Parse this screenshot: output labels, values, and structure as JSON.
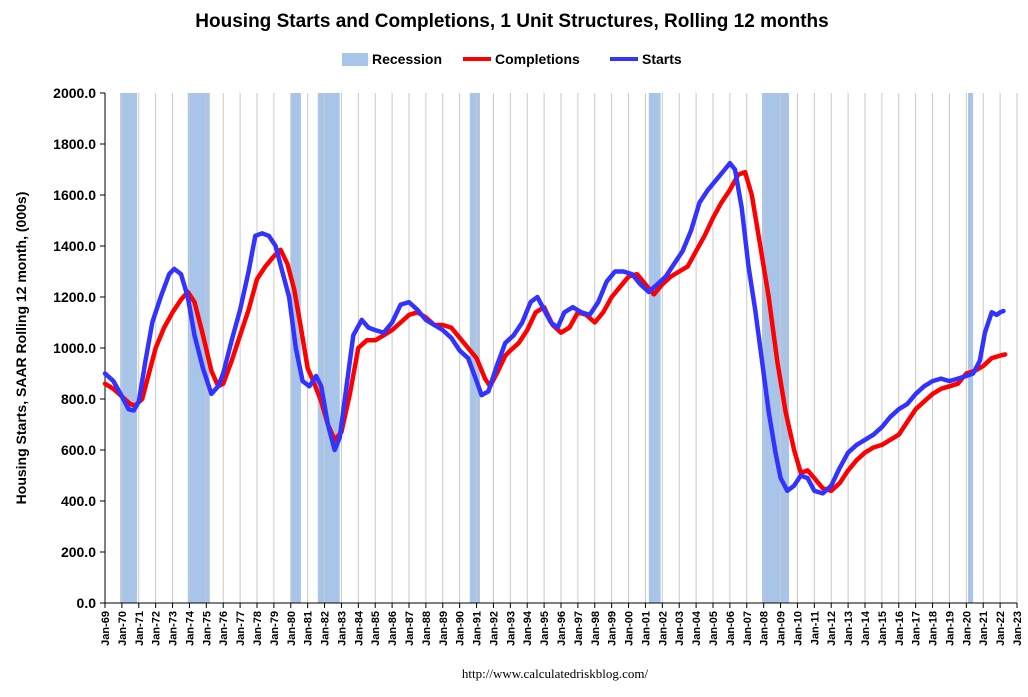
{
  "chart_data": {
    "type": "line",
    "title": "Housing Starts and Completions, 1 Unit Structures, Rolling 12 months",
    "ylabel": "Housing Starts, SAAR Rolling 12 month, (000s)",
    "xlabel": "",
    "ylim": [
      0,
      2000
    ],
    "xlim": [
      1969.0,
      2023.0
    ],
    "y_ticks": [
      "0.0",
      "200.0",
      "400.0",
      "600.0",
      "800.0",
      "1000.0",
      "1200.0",
      "1400.0",
      "1600.0",
      "1800.0",
      "2000.0"
    ],
    "x_ticks": [
      "Jan-69",
      "Jan-70",
      "Jan-71",
      "Jan-72",
      "Jan-73",
      "Jan-74",
      "Jan-75",
      "Jan-76",
      "Jan-77",
      "Jan-78",
      "Jan-79",
      "Jan-80",
      "Jan-81",
      "Jan-82",
      "Jan-83",
      "Jan-84",
      "Jan-85",
      "Jan-86",
      "Jan-87",
      "Jan-88",
      "Jan-89",
      "Jan-90",
      "Jan-91",
      "Jan-92",
      "Jan-93",
      "Jan-94",
      "Jan-95",
      "Jan-96",
      "Jan-97",
      "Jan-98",
      "Jan-99",
      "Jan-00",
      "Jan-01",
      "Jan-02",
      "Jan-03",
      "Jan-04",
      "Jan-05",
      "Jan-06",
      "Jan-07",
      "Jan-08",
      "Jan-09",
      "Jan-10",
      "Jan-11",
      "Jan-12",
      "Jan-13",
      "Jan-14",
      "Jan-15",
      "Jan-16",
      "Jan-17",
      "Jan-18",
      "Jan-19",
      "Jan-20",
      "Jan-21",
      "Jan-22",
      "Jan-23"
    ],
    "legend": {
      "position": "top-center",
      "entries": [
        "Recession",
        "Completions",
        "Starts"
      ]
    },
    "grid": {
      "vertical": true,
      "horizontal": false
    },
    "recessions": [
      [
        1969.9,
        1970.9
      ],
      [
        1973.9,
        1975.2
      ],
      [
        1980.0,
        1980.6
      ],
      [
        1981.6,
        1982.9
      ],
      [
        1990.6,
        1991.2
      ],
      [
        2001.2,
        2001.9
      ],
      [
        2007.9,
        2009.5
      ],
      [
        2020.1,
        2020.4
      ]
    ],
    "series": [
      {
        "name": "Completions",
        "color": "#ff0000",
        "points": [
          [
            1969.0,
            860
          ],
          [
            1969.5,
            840
          ],
          [
            1970.0,
            810
          ],
          [
            1970.5,
            780
          ],
          [
            1970.8,
            775
          ],
          [
            1971.2,
            800
          ],
          [
            1971.6,
            900
          ],
          [
            1972.0,
            1000
          ],
          [
            1972.5,
            1080
          ],
          [
            1973.0,
            1140
          ],
          [
            1973.5,
            1190
          ],
          [
            1973.9,
            1220
          ],
          [
            1974.3,
            1180
          ],
          [
            1974.8,
            1050
          ],
          [
            1975.3,
            910
          ],
          [
            1975.7,
            850
          ],
          [
            1976.0,
            860
          ],
          [
            1976.5,
            950
          ],
          [
            1977.0,
            1050
          ],
          [
            1977.5,
            1150
          ],
          [
            1978.0,
            1270
          ],
          [
            1978.5,
            1320
          ],
          [
            1979.0,
            1360
          ],
          [
            1979.4,
            1385
          ],
          [
            1979.8,
            1330
          ],
          [
            1980.2,
            1230
          ],
          [
            1980.6,
            1080
          ],
          [
            1981.0,
            920
          ],
          [
            1981.4,
            860
          ],
          [
            1981.8,
            790
          ],
          [
            1982.2,
            700
          ],
          [
            1982.6,
            640
          ],
          [
            1983.0,
            670
          ],
          [
            1983.5,
            820
          ],
          [
            1984.0,
            1000
          ],
          [
            1984.5,
            1030
          ],
          [
            1985.0,
            1030
          ],
          [
            1985.5,
            1050
          ],
          [
            1986.0,
            1070
          ],
          [
            1986.5,
            1100
          ],
          [
            1987.0,
            1130
          ],
          [
            1987.5,
            1140
          ],
          [
            1988.0,
            1120
          ],
          [
            1988.5,
            1090
          ],
          [
            1989.0,
            1090
          ],
          [
            1989.5,
            1080
          ],
          [
            1990.0,
            1040
          ],
          [
            1990.5,
            1000
          ],
          [
            1991.0,
            960
          ],
          [
            1991.5,
            880
          ],
          [
            1991.8,
            850
          ],
          [
            1992.2,
            900
          ],
          [
            1992.7,
            970
          ],
          [
            1993.0,
            990
          ],
          [
            1993.5,
            1020
          ],
          [
            1994.0,
            1070
          ],
          [
            1994.5,
            1140
          ],
          [
            1995.0,
            1160
          ],
          [
            1995.5,
            1090
          ],
          [
            1996.0,
            1060
          ],
          [
            1996.5,
            1080
          ],
          [
            1997.0,
            1140
          ],
          [
            1997.5,
            1130
          ],
          [
            1998.0,
            1100
          ],
          [
            1998.5,
            1140
          ],
          [
            1999.0,
            1200
          ],
          [
            1999.5,
            1240
          ],
          [
            2000.0,
            1280
          ],
          [
            2000.5,
            1290
          ],
          [
            2001.0,
            1250
          ],
          [
            2001.5,
            1210
          ],
          [
            2002.0,
            1250
          ],
          [
            2002.5,
            1280
          ],
          [
            2003.0,
            1300
          ],
          [
            2003.5,
            1320
          ],
          [
            2004.0,
            1380
          ],
          [
            2004.5,
            1440
          ],
          [
            2005.0,
            1510
          ],
          [
            2005.5,
            1570
          ],
          [
            2006.0,
            1620
          ],
          [
            2006.5,
            1680
          ],
          [
            2006.9,
            1690
          ],
          [
            2007.3,
            1600
          ],
          [
            2007.8,
            1400
          ],
          [
            2008.3,
            1200
          ],
          [
            2008.8,
            950
          ],
          [
            2009.3,
            750
          ],
          [
            2009.8,
            600
          ],
          [
            2010.2,
            510
          ],
          [
            2010.6,
            520
          ],
          [
            2011.0,
            490
          ],
          [
            2011.5,
            450
          ],
          [
            2012.0,
            440
          ],
          [
            2012.5,
            470
          ],
          [
            2013.0,
            520
          ],
          [
            2013.5,
            560
          ],
          [
            2014.0,
            590
          ],
          [
            2014.5,
            610
          ],
          [
            2015.0,
            620
          ],
          [
            2015.5,
            640
          ],
          [
            2016.0,
            660
          ],
          [
            2016.5,
            710
          ],
          [
            2017.0,
            760
          ],
          [
            2017.5,
            790
          ],
          [
            2018.0,
            820
          ],
          [
            2018.5,
            840
          ],
          [
            2019.0,
            850
          ],
          [
            2019.5,
            860
          ],
          [
            2020.0,
            900
          ],
          [
            2020.5,
            910
          ],
          [
            2021.0,
            930
          ],
          [
            2021.5,
            960
          ],
          [
            2022.0,
            970
          ],
          [
            2022.3,
            975
          ]
        ]
      },
      {
        "name": "Starts",
        "color": "#3333ff",
        "points": [
          [
            1969.0,
            900
          ],
          [
            1969.5,
            870
          ],
          [
            1970.0,
            810
          ],
          [
            1970.4,
            760
          ],
          [
            1970.7,
            755
          ],
          [
            1971.0,
            790
          ],
          [
            1971.4,
            950
          ],
          [
            1971.8,
            1100
          ],
          [
            1972.3,
            1200
          ],
          [
            1972.8,
            1290
          ],
          [
            1973.1,
            1310
          ],
          [
            1973.5,
            1290
          ],
          [
            1973.9,
            1200
          ],
          [
            1974.3,
            1050
          ],
          [
            1974.8,
            920
          ],
          [
            1975.3,
            820
          ],
          [
            1975.7,
            850
          ],
          [
            1976.0,
            900
          ],
          [
            1976.5,
            1030
          ],
          [
            1977.0,
            1150
          ],
          [
            1977.5,
            1300
          ],
          [
            1977.9,
            1440
          ],
          [
            1978.3,
            1450
          ],
          [
            1978.7,
            1440
          ],
          [
            1979.1,
            1400
          ],
          [
            1979.5,
            1300
          ],
          [
            1979.9,
            1200
          ],
          [
            1980.3,
            1000
          ],
          [
            1980.7,
            870
          ],
          [
            1981.1,
            850
          ],
          [
            1981.5,
            890
          ],
          [
            1981.8,
            850
          ],
          [
            1982.2,
            700
          ],
          [
            1982.6,
            600
          ],
          [
            1982.9,
            650
          ],
          [
            1983.3,
            850
          ],
          [
            1983.7,
            1050
          ],
          [
            1984.2,
            1110
          ],
          [
            1984.6,
            1080
          ],
          [
            1985.0,
            1070
          ],
          [
            1985.5,
            1060
          ],
          [
            1986.0,
            1100
          ],
          [
            1986.5,
            1170
          ],
          [
            1987.0,
            1180
          ],
          [
            1987.5,
            1150
          ],
          [
            1988.0,
            1110
          ],
          [
            1988.5,
            1090
          ],
          [
            1989.0,
            1070
          ],
          [
            1989.5,
            1040
          ],
          [
            1990.0,
            990
          ],
          [
            1990.5,
            960
          ],
          [
            1991.0,
            870
          ],
          [
            1991.3,
            815
          ],
          [
            1991.7,
            830
          ],
          [
            1992.2,
            930
          ],
          [
            1992.7,
            1020
          ],
          [
            1993.2,
            1050
          ],
          [
            1993.7,
            1100
          ],
          [
            1994.2,
            1180
          ],
          [
            1994.6,
            1200
          ],
          [
            1995.0,
            1150
          ],
          [
            1995.4,
            1100
          ],
          [
            1995.8,
            1080
          ],
          [
            1996.2,
            1140
          ],
          [
            1996.7,
            1160
          ],
          [
            1997.2,
            1140
          ],
          [
            1997.7,
            1130
          ],
          [
            1998.2,
            1180
          ],
          [
            1998.7,
            1260
          ],
          [
            1999.2,
            1300
          ],
          [
            1999.7,
            1300
          ],
          [
            2000.2,
            1290
          ],
          [
            2000.7,
            1250
          ],
          [
            2001.2,
            1220
          ],
          [
            2001.7,
            1250
          ],
          [
            2002.2,
            1280
          ],
          [
            2002.7,
            1330
          ],
          [
            2003.2,
            1380
          ],
          [
            2003.7,
            1460
          ],
          [
            2004.2,
            1570
          ],
          [
            2004.7,
            1620
          ],
          [
            2005.2,
            1660
          ],
          [
            2005.7,
            1700
          ],
          [
            2006.0,
            1725
          ],
          [
            2006.3,
            1700
          ],
          [
            2006.7,
            1550
          ],
          [
            2007.1,
            1320
          ],
          [
            2007.5,
            1150
          ],
          [
            2007.9,
            950
          ],
          [
            2008.3,
            750
          ],
          [
            2008.7,
            590
          ],
          [
            2009.0,
            490
          ],
          [
            2009.4,
            440
          ],
          [
            2009.8,
            460
          ],
          [
            2010.2,
            500
          ],
          [
            2010.6,
            490
          ],
          [
            2011.0,
            440
          ],
          [
            2011.5,
            430
          ],
          [
            2012.0,
            460
          ],
          [
            2012.5,
            530
          ],
          [
            2013.0,
            590
          ],
          [
            2013.5,
            620
          ],
          [
            2014.0,
            640
          ],
          [
            2014.5,
            660
          ],
          [
            2015.0,
            690
          ],
          [
            2015.5,
            730
          ],
          [
            2016.0,
            760
          ],
          [
            2016.5,
            780
          ],
          [
            2017.0,
            820
          ],
          [
            2017.5,
            850
          ],
          [
            2018.0,
            870
          ],
          [
            2018.5,
            880
          ],
          [
            2019.0,
            870
          ],
          [
            2019.5,
            880
          ],
          [
            2020.0,
            890
          ],
          [
            2020.4,
            900
          ],
          [
            2020.8,
            950
          ],
          [
            2021.1,
            1060
          ],
          [
            2021.5,
            1140
          ],
          [
            2021.8,
            1130
          ],
          [
            2022.0,
            1140
          ],
          [
            2022.2,
            1145
          ]
        ]
      }
    ],
    "recession_color": "#a8c4e8",
    "source": "http://www.calculatedriskblog.com/"
  }
}
